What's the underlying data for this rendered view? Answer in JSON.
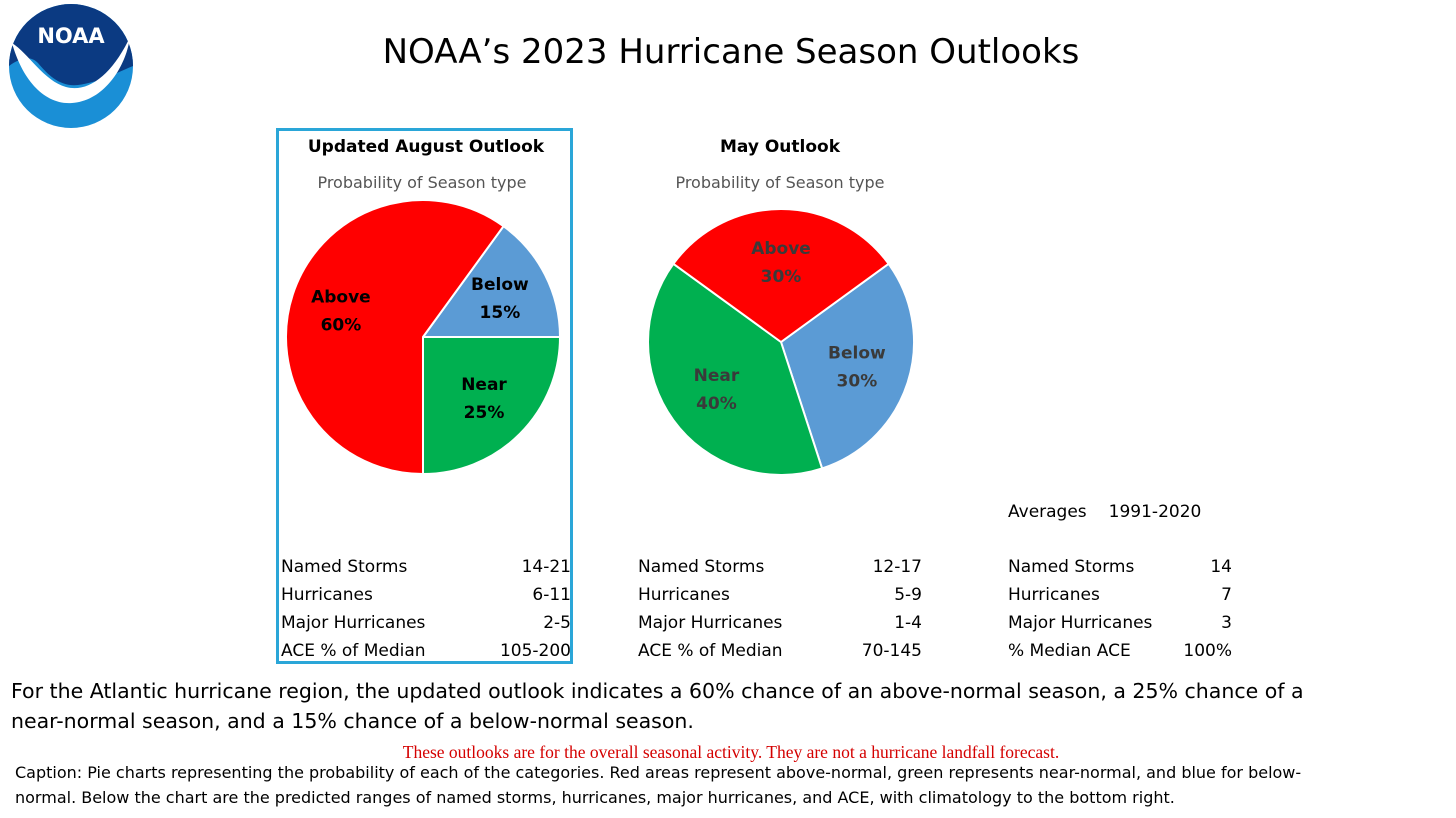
{
  "title": "NOAA’s 2023 Hurricane Season Outlooks",
  "logo": {
    "text": "NOAA"
  },
  "chart_data": [
    {
      "type": "pie",
      "title": "Updated August Outlook",
      "subtitle": "Probability of Season type",
      "slices": [
        {
          "label": "Above",
          "value": 60,
          "display": "60%",
          "color": "#ff0000"
        },
        {
          "label": "Below",
          "value": 15,
          "display": "15%",
          "color": "#5b9bd5"
        },
        {
          "label": "Near",
          "value": 25,
          "display": "25%",
          "color": "#00b050"
        }
      ]
    },
    {
      "type": "pie",
      "title": "May Outlook",
      "subtitle": "Probability of Season type",
      "slices": [
        {
          "label": "Above",
          "value": 30,
          "display": "30%",
          "color": "#ff0000"
        },
        {
          "label": "Below",
          "value": 30,
          "display": "30%",
          "color": "#5b9bd5"
        },
        {
          "label": "Near",
          "value": 40,
          "display": "40%",
          "color": "#00b050"
        }
      ]
    }
  ],
  "august_stats": [
    {
      "label": "Named Storms",
      "value": "14-21"
    },
    {
      "label": "Hurricanes",
      "value": "6-11"
    },
    {
      "label": "Major Hurricanes",
      "value": "2-5"
    },
    {
      "label": "ACE % of Median",
      "value": "105-200"
    }
  ],
  "may_stats": [
    {
      "label": "Named Storms",
      "value": "12-17"
    },
    {
      "label": "Hurricanes",
      "value": "5-9"
    },
    {
      "label": "Major Hurricanes",
      "value": "1-4"
    },
    {
      "label": "ACE % of Median",
      "value": "70-145"
    }
  ],
  "averages": {
    "label": "Averages",
    "years": "1991-2020",
    "rows": [
      {
        "label": "Named Storms",
        "value": "14"
      },
      {
        "label": "Hurricanes",
        "value": "7"
      },
      {
        "label": "Major Hurricanes",
        "value": "3"
      },
      {
        "label": "% Median ACE",
        "value": "100%"
      }
    ]
  },
  "summary_line1": "For the Atlantic hurricane region, the updated outlook indicates a 60% chance of an above-normal season, a 25% chance of a",
  "summary_line2": "near-normal season, and a 15% chance of a below-normal season.",
  "disclaimer": "These outlooks are for the overall seasonal activity.   They are not a hurricane landfall  forecast.",
  "caption_line1": "Caption: Pie charts representing the probability of each of the categories. Red areas represent above-normal, green represents near-normal, and blue for below-",
  "caption_line2": "normal. Below the chart are the predicted ranges of named storms, hurricanes, major hurricanes, and ACE, with climatology to the bottom right."
}
